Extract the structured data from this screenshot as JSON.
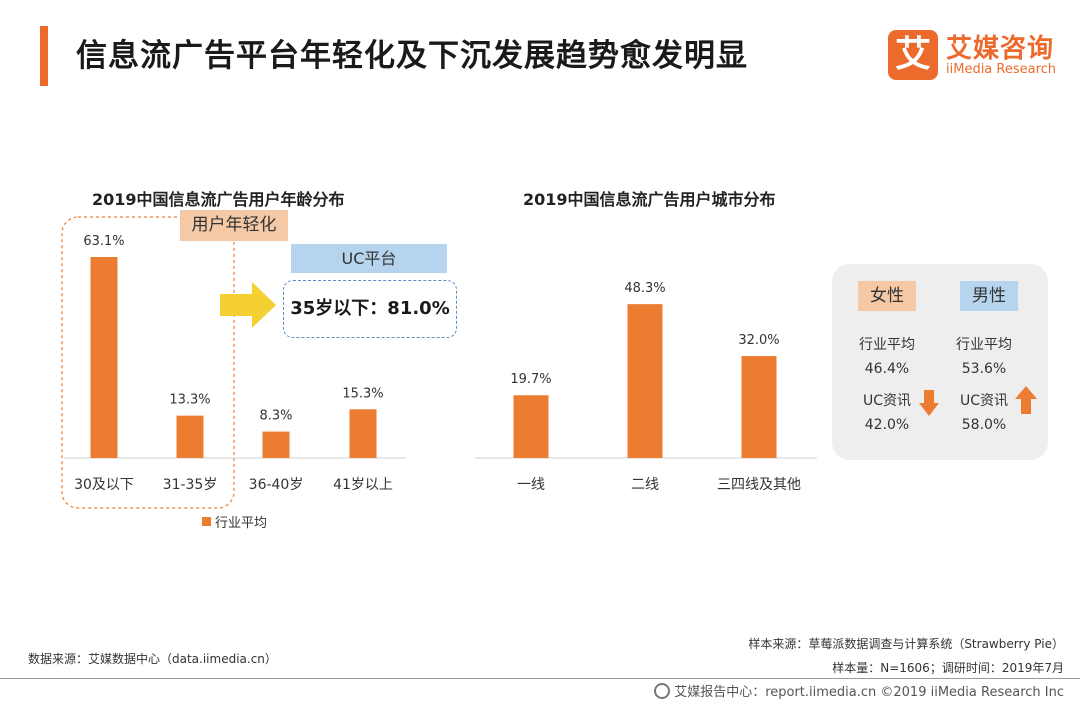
{
  "title": "信息流广告平台年轻化及下沉发展趋势愈发明显",
  "logo": {
    "mark": "艾",
    "cn": "艾媒咨询",
    "en": "iiMedia Research"
  },
  "chart_data": [
    {
      "type": "bar",
      "title": "2019中国信息流广告用户年龄分布",
      "categories": [
        "30及以下",
        "31-35岁",
        "36-40岁",
        "41岁以上"
      ],
      "series": [
        {
          "name": "行业平均",
          "values": [
            63.1,
            13.3,
            8.3,
            15.3
          ]
        }
      ],
      "value_labels": [
        "63.1%",
        "13.3%",
        "8.3%",
        "15.3%"
      ],
      "ylim": [
        0,
        70
      ],
      "grid": false,
      "legend": "bottom",
      "color": "#ec7c30"
    },
    {
      "type": "bar",
      "title": "2019中国信息流广告用户城市分布",
      "categories": [
        "一线",
        "二线",
        "三四线及其他"
      ],
      "series": [
        {
          "values": [
            19.7,
            48.3,
            32.0
          ]
        }
      ],
      "value_labels": [
        "19.7%",
        "48.3%",
        "32.0%"
      ],
      "ylim": [
        0,
        70
      ],
      "grid": false,
      "color": "#ec7c30"
    }
  ],
  "callouts": {
    "young_tag": "用户年轻化",
    "uc_header": "UC平台",
    "uc_value": "35岁以下：81.0%"
  },
  "gender": {
    "female_label": "女性",
    "male_label": "男性",
    "industry_avg_label": "行业平均",
    "uc_label": "UC资讯",
    "female_industry": "46.4%",
    "female_uc": "42.0%",
    "male_industry": "53.6%",
    "male_uc": "58.0%",
    "down_color": "#ec7c30",
    "up_color": "#ec7c30"
  },
  "sources": {
    "left": "数据来源：艾媒数据中心（data.iimedia.cn）",
    "sample_source": "样本来源：草莓派数据调查与计算系统（Strawberry Pie）",
    "sample_size": "样本量：N=1606；调研时间：2019年7月"
  },
  "footer": "艾媒报告中心：report.iimedia.cn  ©2019  iiMedia Research Inc",
  "colors": {
    "accent": "#ec6a2c",
    "bar": "#ec7c30",
    "female_tag": "#f5c9a6",
    "male_tag": "#b7d4ee"
  }
}
